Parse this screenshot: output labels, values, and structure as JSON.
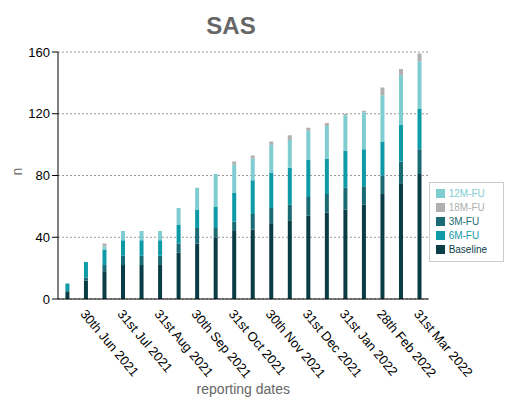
{
  "chart_data": {
    "type": "bar",
    "title": "SAS",
    "x_label": "reporting dates",
    "y_label": "n",
    "categories": [
      null,
      "30th Jun 2021",
      null,
      "31st Jul 2021",
      null,
      "31st Aug 2021",
      null,
      "30th Sep 2021",
      null,
      "31st Oct 2021",
      null,
      "30th Nov 2021",
      null,
      "31st Dec 2021",
      null,
      "31st Jan 2022",
      null,
      "28th Feb 2022",
      null,
      "31st Mar 2022"
    ],
    "series": [
      {
        "name": "Baseline",
        "color": "#0b3d46",
        "values": [
          5,
          12,
          18,
          22,
          22,
          22,
          30,
          36,
          40,
          44,
          45,
          49,
          51,
          54,
          56,
          58,
          61,
          68,
          75,
          81
        ]
      },
      {
        "name": "3M-FU",
        "color": "#1a6b73",
        "values": [
          0,
          2,
          4,
          6,
          6,
          6,
          6,
          10,
          6,
          6,
          10,
          10,
          10,
          12,
          12,
          14,
          12,
          12,
          14,
          16
        ]
      },
      {
        "name": "6M-FU",
        "color": "#0e9aa7",
        "values": [
          5,
          10,
          10,
          10,
          10,
          10,
          12,
          12,
          14,
          19,
          22,
          23,
          24,
          24,
          23,
          24,
          24,
          22,
          24,
          26
        ]
      },
      {
        "name": "12M-FU",
        "color": "#7fcdd1",
        "values": [
          0,
          0,
          2,
          6,
          6,
          6,
          11,
          14,
          21,
          18,
          14,
          18,
          18,
          19,
          21,
          23,
          24,
          30,
          32,
          31
        ]
      },
      {
        "name": "18M-FU",
        "color": "#b0b0b0",
        "values": [
          0,
          0,
          2,
          0,
          0,
          0,
          0,
          0,
          0,
          2,
          2,
          2,
          3,
          2,
          2,
          1,
          1,
          5,
          4,
          5
        ]
      }
    ],
    "ylim": [
      0,
      160
    ],
    "yticks": [
      0,
      40,
      80,
      120,
      160
    ],
    "grid": true,
    "stacked": true,
    "legend": "right"
  }
}
